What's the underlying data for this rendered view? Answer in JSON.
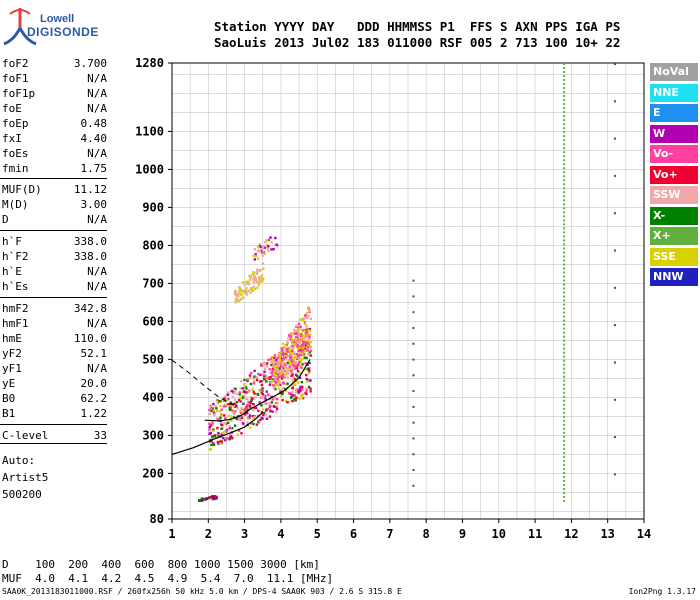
{
  "logo": {
    "line1": "Lowell",
    "line2": "DIGISONDE"
  },
  "header": {
    "line1": "Station YYYY DAY   DDD HHMMSS P1  FFS S AXN PPS IGA PS",
    "line2": "SaoLuis 2013 Jul02 183 011000 RSF 005 2 713 100 10+ 22"
  },
  "params": [
    {
      "k": "foF2",
      "v": "3.700"
    },
    {
      "k": "foF1",
      "v": "N/A"
    },
    {
      "k": "foF1p",
      "v": "N/A"
    },
    {
      "k": "foE",
      "v": "N/A"
    },
    {
      "k": "foEp",
      "v": "0.48"
    },
    {
      "k": "fxI",
      "v": "4.40"
    },
    {
      "k": "foEs",
      "v": "N/A"
    },
    {
      "k": "fmin",
      "v": "1.75"
    },
    {
      "k": "MUF(D)",
      "v": "11.12"
    },
    {
      "k": "M(D)",
      "v": "3.00"
    },
    {
      "k": "D",
      "v": "N/A"
    },
    {
      "k": "h`F",
      "v": "338.0"
    },
    {
      "k": "h`F2",
      "v": "338.0"
    },
    {
      "k": "h`E",
      "v": "N/A"
    },
    {
      "k": "h`Es",
      "v": "N/A"
    },
    {
      "k": "hmF2",
      "v": "342.8"
    },
    {
      "k": "hmF1",
      "v": "N/A"
    },
    {
      "k": "hmE",
      "v": "110.0"
    },
    {
      "k": "yF2",
      "v": "52.1"
    },
    {
      "k": "yF1",
      "v": "N/A"
    },
    {
      "k": "yE",
      "v": "20.0"
    },
    {
      "k": "B0",
      "v": "62.2"
    },
    {
      "k": "B1",
      "v": "1.22"
    },
    {
      "k": "C-level",
      "v": "33"
    }
  ],
  "auto": {
    "l1": "Auto:",
    "l2": "Artist5",
    "l3": "500200"
  },
  "legend": [
    {
      "label": "NoVal",
      "color": "#a0a0a0"
    },
    {
      "label": "NNE",
      "color": "#1ee0f0"
    },
    {
      "label": "E",
      "color": "#2090f0"
    },
    {
      "label": "W",
      "color": "#b000b0"
    },
    {
      "label": "Vo-",
      "color": "#ff40a0"
    },
    {
      "label": "Vo+",
      "color": "#f00030"
    },
    {
      "label": "SSW",
      "color": "#f0a8a8"
    },
    {
      "label": "X-",
      "color": "#008000"
    },
    {
      "label": "X+",
      "color": "#60b040"
    },
    {
      "label": "SSE",
      "color": "#d8d000"
    },
    {
      "label": "NNW",
      "color": "#2020c0"
    }
  ],
  "footer": {
    "line1": "D    100  200  400  600  800 1000 1500 3000 [km]",
    "line2": "MUF  4.0  4.1  4.2  4.5  4.9  5.4  7.0  11.1 [MHz]",
    "line3": "SAA0K_2013183011000.RSF / 260fx256h 50 kHz 5.0 km / DPS-4 SAA0K 903 / 2.6 S 315.8 E",
    "version": "Ion2Png 1.3.17"
  },
  "chart_data": {
    "type": "scatter",
    "xlim": [
      1,
      14
    ],
    "ylim": [
      80,
      1280
    ],
    "x_ticks": [
      "1",
      "2",
      "3",
      "4",
      "5",
      "6",
      "7",
      "8",
      "9",
      "10",
      "11",
      "12",
      "13",
      "14"
    ],
    "y_ticks": [
      "80",
      "200",
      "300",
      "400",
      "500",
      "600",
      "700",
      "800",
      "900",
      "1000",
      "1100",
      "1280"
    ],
    "grid": true,
    "clusters": [
      {
        "x": [
          2.0,
          4.8
        ],
        "y": [
          260,
          600
        ],
        "n": 650,
        "colors": [
          "#f00030",
          "#ff40a0",
          "#b000b0",
          "#008000",
          "#d8d000",
          "#f0a8a8"
        ]
      },
      {
        "x": [
          3.7,
          4.8
        ],
        "y": [
          420,
          650
        ],
        "n": 300,
        "colors": [
          "#d8d000",
          "#f0a8a8",
          "#ff40a0"
        ]
      },
      {
        "x": [
          2.7,
          3.5
        ],
        "y": [
          650,
          760
        ],
        "n": 90,
        "colors": [
          "#f0a8a8",
          "#d8d000"
        ]
      },
      {
        "x": [
          3.2,
          3.9
        ],
        "y": [
          760,
          850
        ],
        "n": 40,
        "colors": [
          "#f0a8a8",
          "#d8d000",
          "#b000b0"
        ]
      },
      {
        "x": [
          1.7,
          2.2
        ],
        "y": [
          130,
          145
        ],
        "n": 35,
        "colors": [
          "#008000",
          "#2020c0",
          "#f00030"
        ]
      }
    ],
    "lines": [
      {
        "x": 7.65,
        "y": [
          170,
          710
        ],
        "n": 14,
        "color": "#008000"
      },
      {
        "x": 11.8,
        "y": [
          130,
          1280
        ],
        "n": 110,
        "color": "#60b040"
      },
      {
        "x": 13.2,
        "y": [
          200,
          1280
        ],
        "n": 12,
        "color": "#008000"
      }
    ],
    "curves": {
      "solid": [
        [
          1.0,
          250
        ],
        [
          1.6,
          268
        ],
        [
          2.2,
          292
        ],
        [
          2.7,
          310
        ],
        [
          3.0,
          322
        ],
        [
          3.3,
          343
        ],
        [
          3.5,
          360
        ]
      ],
      "trace": [
        [
          1.9,
          340
        ],
        [
          2.3,
          338
        ],
        [
          2.6,
          342
        ],
        [
          2.9,
          352
        ],
        [
          3.2,
          372
        ],
        [
          3.6,
          392
        ],
        [
          4.1,
          418
        ],
        [
          4.5,
          452
        ],
        [
          4.8,
          500
        ]
      ],
      "dashed": [
        [
          1.0,
          498
        ],
        [
          1.4,
          470
        ],
        [
          1.9,
          430
        ],
        [
          2.3,
          400
        ],
        [
          2.7,
          380
        ]
      ]
    }
  }
}
